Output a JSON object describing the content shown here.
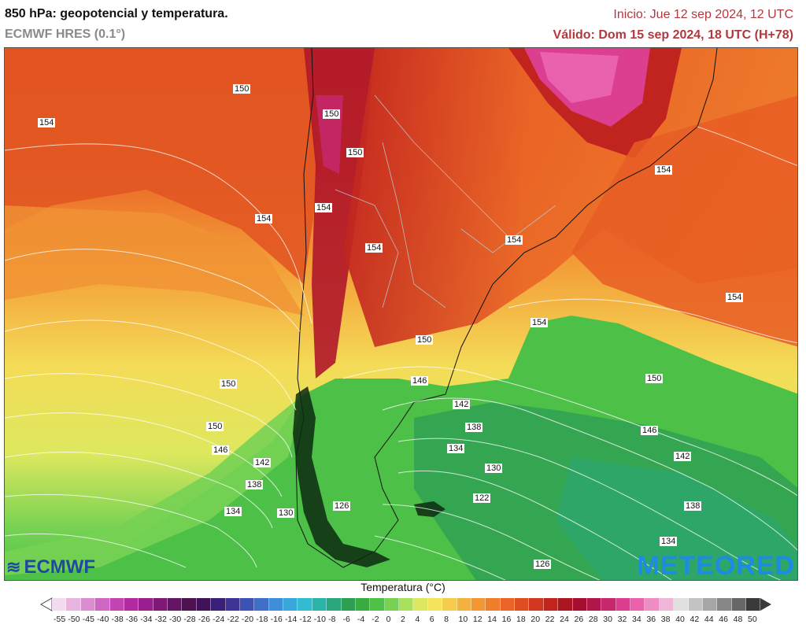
{
  "header": {
    "title": "850 hPa: geopotencial y temperatura.",
    "model": "ECMWF HRES (0.1°)",
    "init": "Inicio: Jue 12 sep 2024, 12 UTC",
    "valid": "Válido: Dom 15 sep 2024, 18 UTC (H+78)"
  },
  "logos": {
    "left": "ECMWF",
    "right": "METEORED"
  },
  "legend": {
    "title": "Temperatura (°C)",
    "labels": [
      "-55",
      "-50",
      "-45",
      "-40",
      "-38",
      "-36",
      "-34",
      "-32",
      "-30",
      "-28",
      "-26",
      "-24",
      "-22",
      "-20",
      "-18",
      "-16",
      "-14",
      "-12",
      "-10",
      "-8",
      "-6",
      "-4",
      "-2",
      "0",
      "2",
      "4",
      "6",
      "8",
      "10",
      "12",
      "14",
      "16",
      "18",
      "20",
      "22",
      "24",
      "26",
      "28",
      "30",
      "32",
      "34",
      "36",
      "38",
      "40",
      "42",
      "44",
      "46",
      "48",
      "50"
    ],
    "colors": [
      "#f4dcf0",
      "#e8b4e0",
      "#dc8cd0",
      "#cf66c2",
      "#c245b3",
      "#b32aa2",
      "#9a1e8e",
      "#7f187a",
      "#661466",
      "#4e1152",
      "#3f1259",
      "#3a1f78",
      "#3c3596",
      "#3e52b3",
      "#3f70c9",
      "#3e8fd8",
      "#3aa8dc",
      "#32bcd2",
      "#2bb5a8",
      "#2aa77c",
      "#2e9e52",
      "#3aab3f",
      "#4dc048",
      "#77d253",
      "#a8e05c",
      "#dde85e",
      "#f4e55c",
      "#f6cc4c",
      "#f4b23f",
      "#f29734",
      "#ef7e2c",
      "#ea6526",
      "#e04d22",
      "#d2371f",
      "#c1241f",
      "#ac1620",
      "#a50f2f",
      "#b0174a",
      "#c7286d",
      "#dc3f8f",
      "#ea62ad",
      "#ee8cc4",
      "#f0b6d8",
      "#e0e0e0",
      "#c4c4c4",
      "#a6a6a6",
      "#878787",
      "#676767",
      "#3a3a3a"
    ]
  },
  "contours": {
    "labels": [
      "150",
      "154",
      "150",
      "150",
      "154",
      "154",
      "154",
      "154",
      "154",
      "154",
      "150",
      "154",
      "146",
      "150",
      "146",
      "142",
      "138",
      "134",
      "130",
      "142",
      "138",
      "134",
      "130",
      "126",
      "122",
      "126",
      "150",
      "146",
      "142",
      "138",
      "134",
      "126"
    ]
  }
}
